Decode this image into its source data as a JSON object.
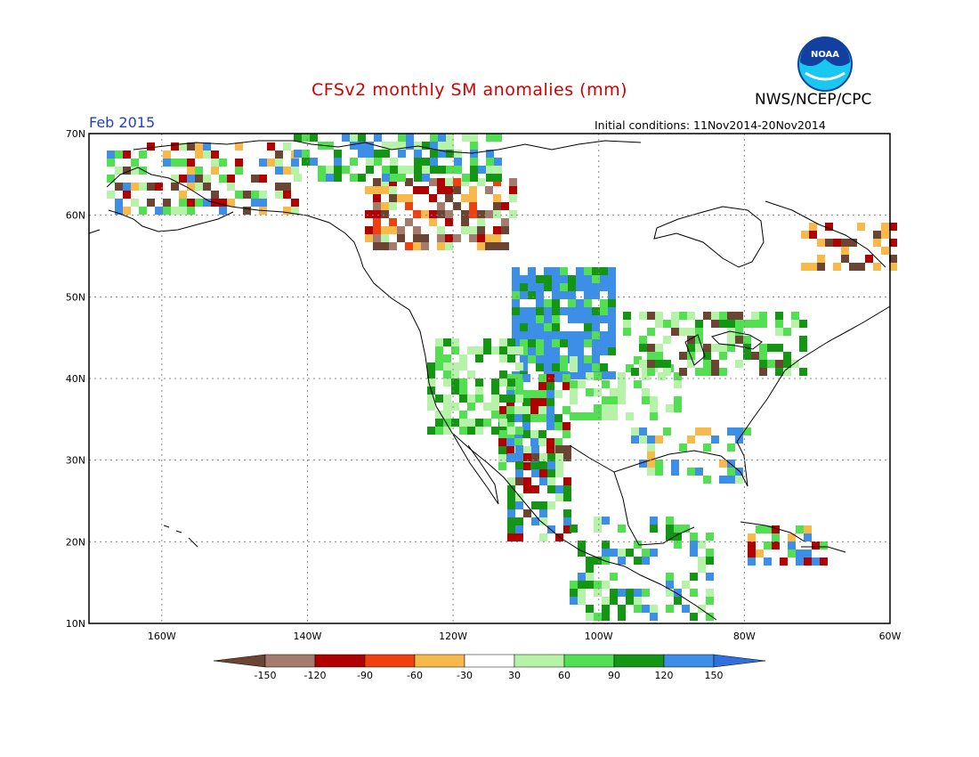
{
  "header": {
    "title": "CFSv2 monthly SM anomalies (mm)",
    "org": "NWS/NCEP/CPC",
    "month": "Feb 2015",
    "initial_conditions": "Initial conditions: 11Nov2014-20Nov2014",
    "logo_text": "NOAA"
  },
  "map": {
    "lat_labels": [
      "70N",
      "60N",
      "50N",
      "40N",
      "30N",
      "20N",
      "10N"
    ],
    "lon_labels": [
      "160W",
      "140W",
      "120W",
      "100W",
      "80W",
      "60W"
    ],
    "lat_range": [
      10,
      70
    ],
    "lon_range": [
      -170,
      -60
    ],
    "grid": "dotted"
  },
  "colorbar": {
    "labels": [
      "-150",
      "-120",
      "-90",
      "-60",
      "-30",
      "30",
      "60",
      "90",
      "120",
      "150"
    ],
    "colors": [
      "#6b4433",
      "#a57b6e",
      "#b00000",
      "#f04010",
      "#f7b94a",
      "#ffffff",
      "#b6f2a8",
      "#52df52",
      "#149614",
      "#3c8ee6",
      "#2f6fe0"
    ]
  }
}
